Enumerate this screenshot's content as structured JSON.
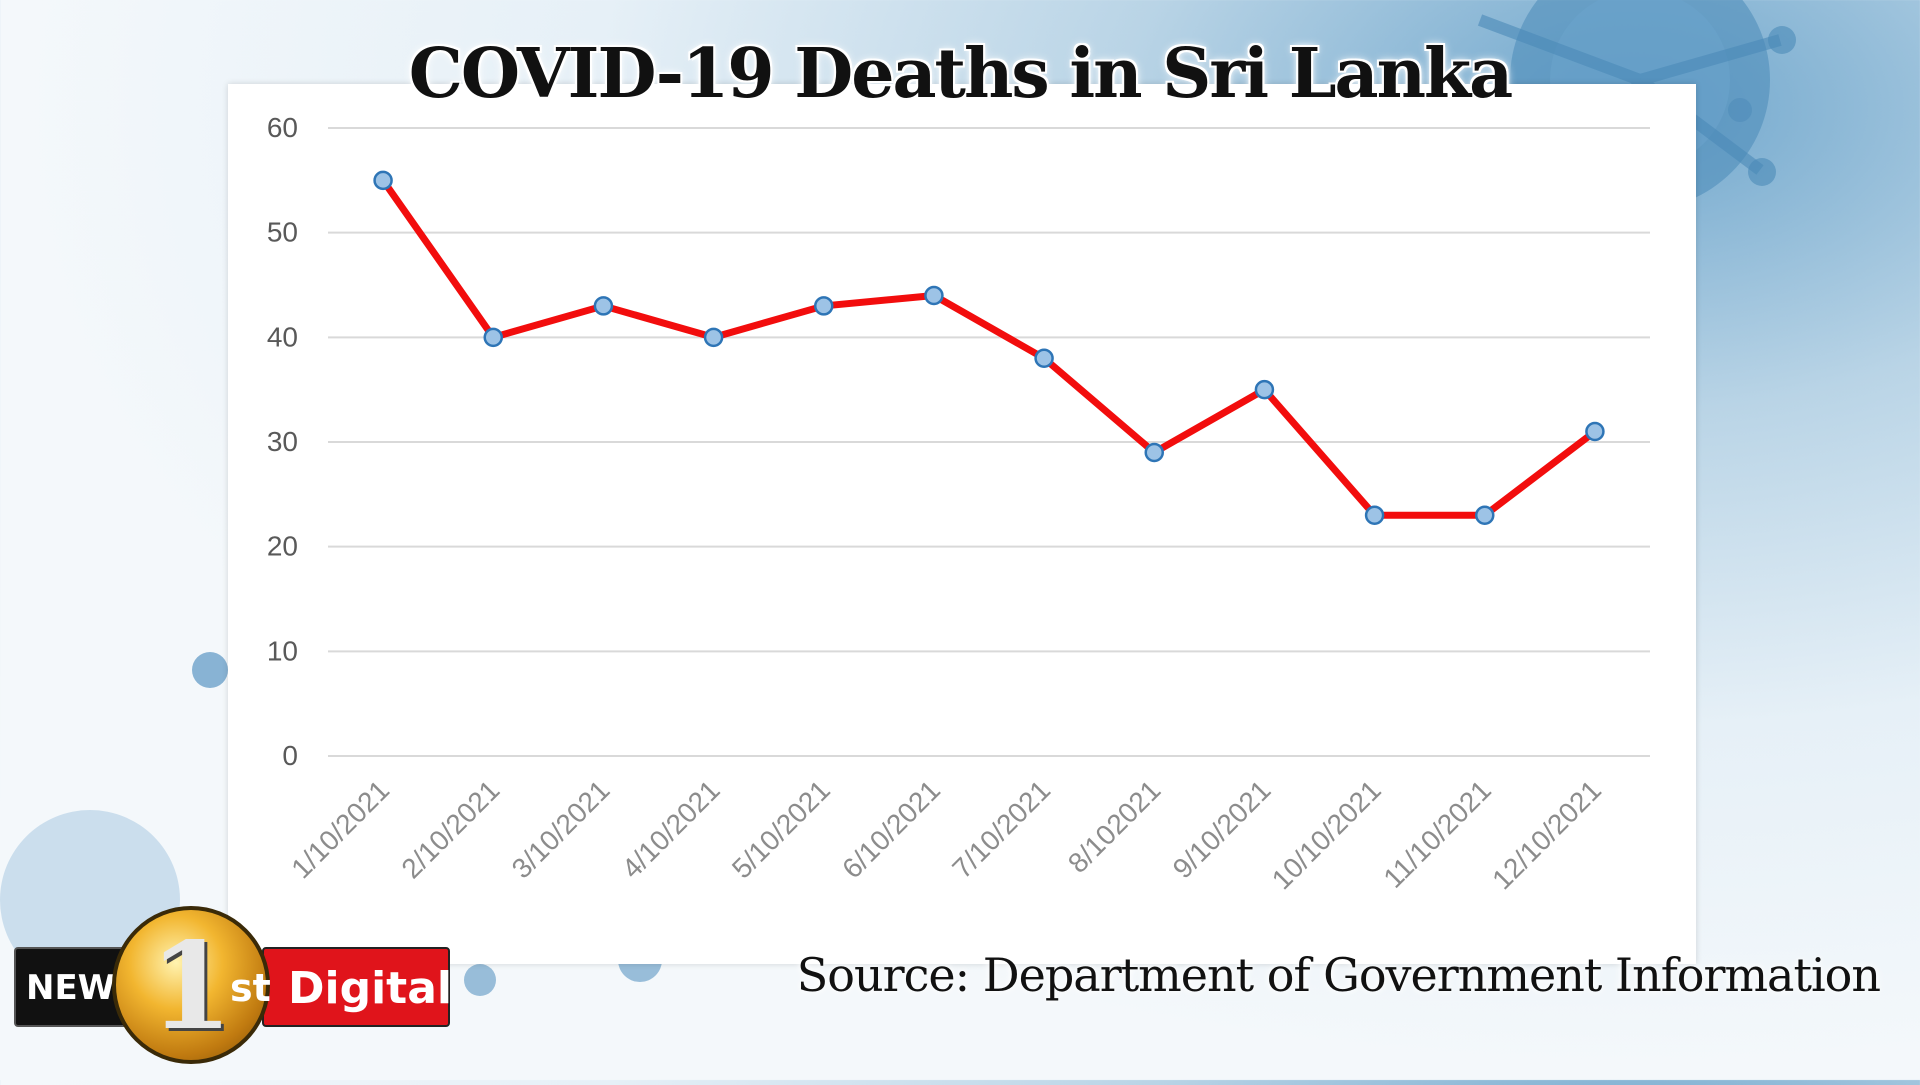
{
  "header": {
    "title": "COVID-19 Deaths in Sri Lanka"
  },
  "footer": {
    "source": "Source: Department of Government Information"
  },
  "logo": {
    "news": "NEWS",
    "one": "1",
    "st": "st",
    "digital": "Digital"
  },
  "colors": {
    "line": "#f20d0d",
    "marker_fill": "#9dc3e6",
    "marker_stroke": "#2e75b6",
    "grid": "#d9d9d9",
    "tick_text": "#595959"
  },
  "chart_data": {
    "type": "line",
    "title": "COVID-19 Deaths in Sri Lanka",
    "xlabel": "",
    "ylabel": "",
    "categories": [
      "1/10/2021",
      "2/10/2021",
      "3/10/2021",
      "4/10/2021",
      "5/10/2021",
      "6/10/2021",
      "7/10/2021",
      "8/102021",
      "9/10/2021",
      "10/10/2021",
      "11/10/2021",
      "12/10/2021"
    ],
    "series": [
      {
        "values": [
          55,
          40,
          43,
          40,
          43,
          44,
          38,
          29,
          35,
          23,
          23,
          31
        ]
      }
    ],
    "yticks": [
      "0",
      "10",
      "20",
      "30",
      "40",
      "50",
      "60"
    ],
    "ylim": [
      0,
      60
    ],
    "grid": true,
    "legend": "none"
  }
}
